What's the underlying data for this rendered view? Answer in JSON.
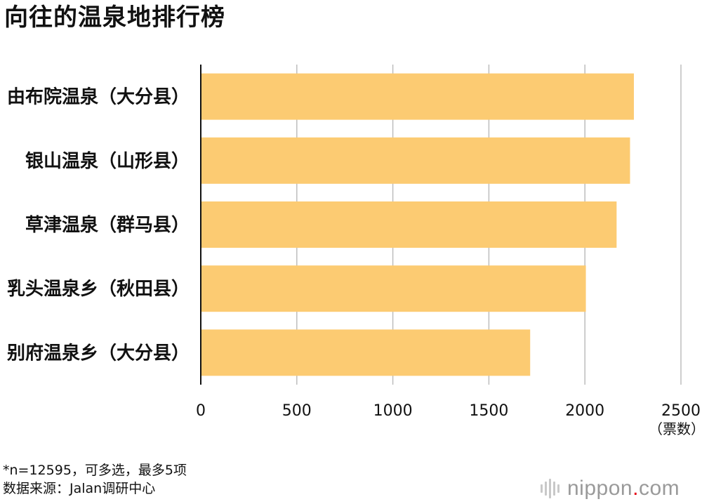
{
  "title": "向往的温泉地排行榜",
  "note": {
    "line1": "*n=12595，可多选，最多5项",
    "line2": "数据来源：Jalan调研中心"
  },
  "logo": {
    "name": "nippon",
    "dot": ".",
    "suffix": "com",
    "dot_color": "#e60012"
  },
  "chart_data": {
    "type": "bar",
    "orientation": "horizontal",
    "categories": [
      "由布院温泉（大分县）",
      "银山温泉（山形县）",
      "草津温泉（群马县）",
      "乳头温泉乡（秋田县）",
      "别府温泉乡（大分县）"
    ],
    "values": [
      2255,
      2235,
      2165,
      2005,
      1715
    ],
    "xlim": [
      0,
      2500
    ],
    "xticks": [
      "0",
      "500",
      "1000",
      "1500",
      "2000",
      "2500"
    ],
    "xunit": "（票数）",
    "grid": true,
    "bar_color": "#fccb72"
  }
}
